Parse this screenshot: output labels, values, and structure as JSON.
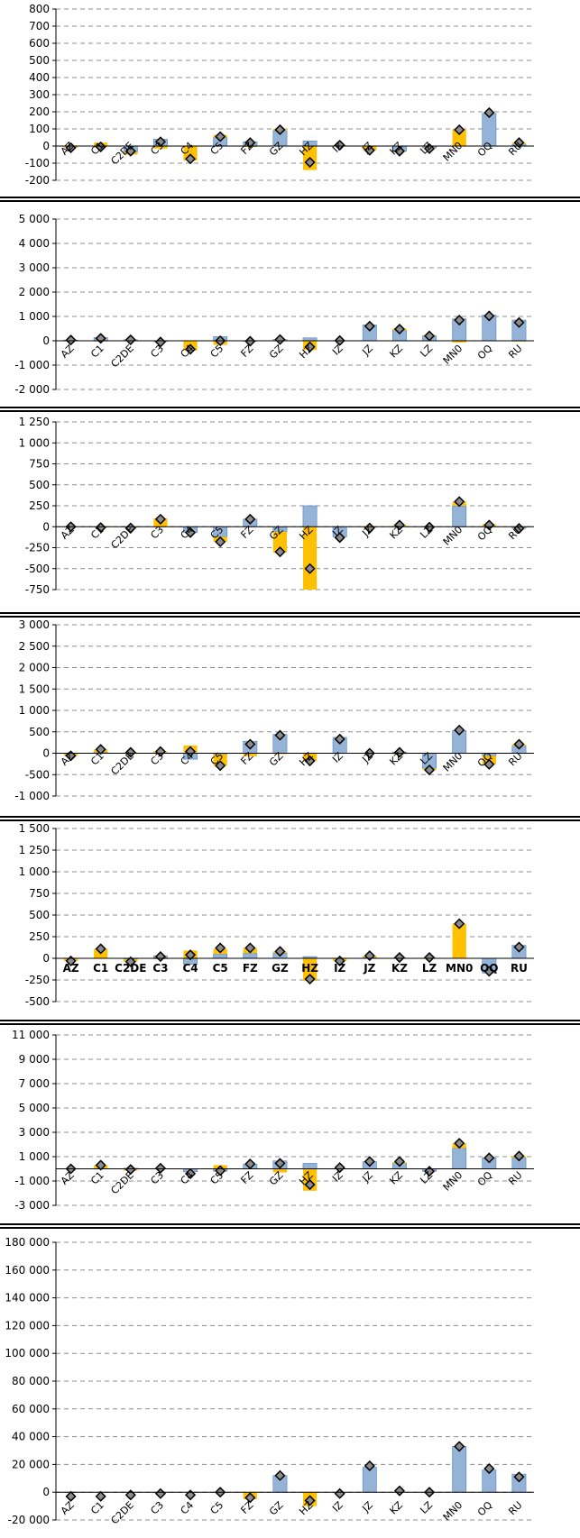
{
  "colors": {
    "bar_blue": "#95B3D7",
    "bar_blue_edge": "#4F81BD",
    "bar_yellow": "#FFC000",
    "marker_fill": "#8C8C8C",
    "marker_edge": "#000000",
    "grid": "#8C8C8C",
    "axis": "#000000"
  },
  "chart_data": [
    {
      "type": "bar",
      "categories": [
        "AZ",
        "C1",
        "C2DE",
        "C3",
        "C4",
        "C5",
        "FZ",
        "GZ",
        "HZ",
        "IZ",
        "JZ",
        "KZ",
        "LZ",
        "MN0",
        "OQ",
        "RU"
      ],
      "series": [
        {
          "values": [
            0,
            0,
            -35,
            40,
            0,
            50,
            25,
            90,
            30,
            0,
            0,
            -30,
            -10,
            0,
            190,
            10
          ]
        },
        {
          "values": [
            -10,
            20,
            -15,
            -15,
            -85,
            15,
            -5,
            10,
            -140,
            5,
            -25,
            -5,
            -5,
            100,
            0,
            10
          ]
        },
        {
          "values": [
            -10,
            -5,
            -30,
            25,
            -75,
            55,
            20,
            95,
            -95,
            5,
            -25,
            -30,
            -15,
            95,
            195,
            20
          ]
        }
      ],
      "yticks": [
        "800",
        "700",
        "600",
        "500",
        "400",
        "300",
        "200",
        "100",
        "0",
        "-100",
        "-200"
      ],
      "ylim": [
        -200,
        800
      ],
      "tick_step": 100,
      "grid": true,
      "label_style": "rotated"
    },
    {
      "type": "bar",
      "categories": [
        "AZ",
        "C1",
        "C2DE",
        "C3",
        "C4",
        "C5",
        "FZ",
        "GZ",
        "HZ",
        "IZ",
        "JZ",
        "KZ",
        "LZ",
        "MN0",
        "OQ",
        "RU"
      ],
      "series": [
        {
          "values": [
            30,
            130,
            40,
            -30,
            0,
            170,
            -20,
            60,
            120,
            10,
            650,
            430,
            200,
            900,
            1050,
            850
          ]
        },
        {
          "values": [
            0,
            -30,
            0,
            -20,
            -400,
            -170,
            0,
            10,
            -380,
            0,
            0,
            80,
            30,
            -70,
            0,
            -30
          ]
        },
        {
          "values": [
            30,
            100,
            40,
            -50,
            -350,
            0,
            -20,
            50,
            -250,
            10,
            600,
            480,
            200,
            850,
            1020,
            750
          ]
        }
      ],
      "yticks": [
        "5 000",
        "4 000",
        "3 000",
        "2 000",
        "1 000",
        "0",
        "-1 000",
        "-2 000"
      ],
      "ylim": [
        -2000,
        5000
      ],
      "tick_step": 1000,
      "grid": true,
      "label_style": "rotated"
    },
    {
      "type": "bar",
      "categories": [
        "AZ",
        "C1",
        "C2DE",
        "C3",
        "C4",
        "C5",
        "FZ",
        "GZ",
        "HZ",
        "IZ",
        "JZ",
        "KZ",
        "LZ",
        "MN0",
        "OQ",
        "RU"
      ],
      "series": [
        {
          "values": [
            0,
            0,
            0,
            0,
            -70,
            -120,
            90,
            -60,
            250,
            -120,
            0,
            0,
            0,
            250,
            0,
            -20
          ]
        },
        {
          "values": [
            0,
            -10,
            -15,
            100,
            0,
            -60,
            0,
            -250,
            -750,
            0,
            -15,
            20,
            -5,
            50,
            30,
            0
          ]
        },
        {
          "values": [
            0,
            -10,
            -15,
            90,
            -70,
            -180,
            90,
            -300,
            -500,
            -130,
            -15,
            20,
            -5,
            300,
            20,
            -20
          ]
        }
      ],
      "yticks": [
        "1 250",
        "1 000",
        "750",
        "500",
        "250",
        "0",
        "-250",
        "-500",
        "-750"
      ],
      "ylim": [
        -750,
        1250
      ],
      "tick_step": 250,
      "grid": true,
      "label_style": "rotated"
    },
    {
      "type": "bar",
      "categories": [
        "AZ",
        "C1",
        "C2DE",
        "C3",
        "C4",
        "C5",
        "FZ",
        "GZ",
        "HZ",
        "IZ",
        "JZ",
        "KZ",
        "LZ",
        "MN0",
        "OQ",
        "RU"
      ],
      "series": [
        {
          "values": [
            0,
            20,
            0,
            10,
            -140,
            -20,
            280,
            440,
            0,
            370,
            0,
            30,
            -350,
            530,
            -60,
            170
          ]
        },
        {
          "values": [
            -60,
            70,
            20,
            30,
            180,
            -270,
            -70,
            -20,
            -180,
            0,
            -10,
            -20,
            -40,
            0,
            -200,
            40
          ]
        },
        {
          "values": [
            -60,
            90,
            20,
            40,
            40,
            -290,
            210,
            420,
            -180,
            330,
            0,
            20,
            -390,
            540,
            -260,
            210
          ]
        }
      ],
      "yticks": [
        "3 000",
        "2 500",
        "2 000",
        "1 500",
        "1 000",
        "500",
        "0",
        "-500",
        "-1 000"
      ],
      "ylim": [
        -1000,
        3000
      ],
      "tick_step": 500,
      "grid": true,
      "label_style": "rotated"
    },
    {
      "type": "bar",
      "categories": [
        "AZ",
        "C1",
        "C2DE",
        "C3",
        "C4",
        "C5",
        "FZ",
        "GZ",
        "HZ",
        "IZ",
        "JZ",
        "KZ",
        "LZ",
        "MN0",
        "OQ",
        "RU"
      ],
      "series": [
        {
          "values": [
            0,
            0,
            -10,
            30,
            -70,
            50,
            60,
            60,
            20,
            0,
            10,
            0,
            0,
            0,
            -170,
            150
          ]
        },
        {
          "values": [
            -30,
            110,
            -30,
            -10,
            90,
            60,
            60,
            20,
            -260,
            -30,
            20,
            10,
            10,
            400,
            0,
            0
          ]
        },
        {
          "values": [
            -30,
            110,
            -40,
            20,
            40,
            120,
            120,
            80,
            -240,
            -30,
            30,
            10,
            10,
            400,
            -150,
            130
          ]
        }
      ],
      "yticks": [
        "1 500",
        "1 250",
        "1 000",
        "750",
        "500",
        "250",
        "0",
        "-250",
        "-500"
      ],
      "ylim": [
        -500,
        1500
      ],
      "tick_step": 250,
      "grid": true,
      "label_style": "flat"
    },
    {
      "type": "bar",
      "categories": [
        "AZ",
        "C1",
        "C2DE",
        "C3",
        "C4",
        "C5",
        "FZ",
        "GZ",
        "HZ",
        "IZ",
        "JZ",
        "KZ",
        "LZ",
        "MN0",
        "OQ",
        "RU"
      ],
      "series": [
        {
          "values": [
            0,
            0,
            50,
            0,
            -250,
            -200,
            380,
            650,
            450,
            0,
            580,
            450,
            -200,
            1700,
            900,
            900
          ]
        },
        {
          "values": [
            0,
            300,
            -150,
            0,
            0,
            300,
            0,
            -300,
            -1800,
            0,
            0,
            100,
            0,
            400,
            0,
            150
          ]
        },
        {
          "values": [
            0,
            300,
            -50,
            50,
            -400,
            -150,
            400,
            450,
            -1300,
            100,
            600,
            600,
            -200,
            2100,
            900,
            1050
          ]
        }
      ],
      "yticks": [
        "11 000",
        "9 000",
        "7 000",
        "5 000",
        "3 000",
        "1 000",
        "-1 000",
        "-3 000"
      ],
      "ylim": [
        -3000,
        11000
      ],
      "tick_step": 1000,
      "baseline": 0,
      "grid": true,
      "label_style": "rotated"
    },
    {
      "type": "bar",
      "categories": [
        "AZ",
        "C1",
        "C2DE",
        "C3",
        "C4",
        "C5",
        "FZ",
        "GZ",
        "HZ",
        "IZ",
        "JZ",
        "KZ",
        "LZ",
        "MN0",
        "OQ",
        "RU"
      ],
      "series": [
        {
          "values": [
            0,
            0,
            0,
            0,
            0,
            0,
            0,
            12000,
            0,
            0,
            18000,
            0,
            0,
            33000,
            16000,
            13000
          ]
        },
        {
          "values": [
            0,
            0,
            0,
            0,
            0,
            0,
            -5000,
            0,
            -10000,
            0,
            0,
            0,
            0,
            0,
            0,
            0
          ]
        },
        {
          "values": [
            -3000,
            -3000,
            -2000,
            -1000,
            -2000,
            0,
            -4000,
            12000,
            -6000,
            -1000,
            19000,
            1000,
            0,
            33000,
            17000,
            11000
          ]
        }
      ],
      "yticks": [
        "180 000",
        "160 000",
        "140 000",
        "120 000",
        "100 000",
        "80 000",
        "60 000",
        "40 000",
        "20 000",
        "0",
        "-20 000"
      ],
      "ylim": [
        -20000,
        180000
      ],
      "tick_step": 20000,
      "grid": true,
      "label_style": "rotated"
    }
  ]
}
